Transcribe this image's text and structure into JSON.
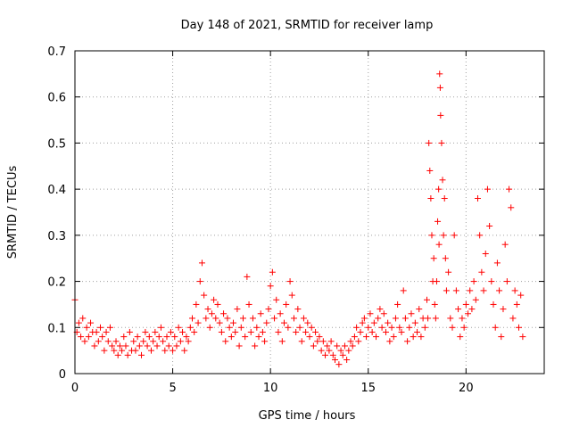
{
  "chart_data": {
    "type": "scatter",
    "title": "Day 148 of 2021, SRMTID for receiver lamp",
    "xlabel": "GPS time / hours",
    "ylabel": "SRMTID / TECUs",
    "xlim": [
      0,
      24
    ],
    "ylim": [
      0,
      0.7
    ],
    "xticks": [
      0,
      5,
      10,
      15,
      20
    ],
    "yticks": [
      0,
      0.1,
      0.2,
      0.3,
      0.4,
      0.5,
      0.6,
      0.7
    ],
    "xtick_labels": [
      "0",
      "5",
      "10",
      "15",
      "20"
    ],
    "ytick_labels": [
      "0",
      "0.1",
      "0.2",
      "0.3",
      "0.4",
      "0.5",
      "0.6",
      "0.7"
    ],
    "grid": true,
    "marker": "+",
    "color": "#ff0000",
    "series": [
      {
        "name": "SRMTID",
        "x": [
          0.0,
          0.1,
          0.2,
          0.3,
          0.4,
          0.5,
          0.6,
          0.7,
          0.8,
          0.9,
          1.0,
          1.1,
          1.2,
          1.3,
          1.4,
          1.5,
          1.6,
          1.7,
          1.8,
          1.9,
          2.0,
          2.1,
          2.2,
          2.3,
          2.4,
          2.5,
          2.6,
          2.7,
          2.8,
          2.9,
          3.0,
          3.1,
          3.2,
          3.3,
          3.4,
          3.5,
          3.6,
          3.7,
          3.8,
          3.9,
          4.0,
          4.1,
          4.2,
          4.3,
          4.4,
          4.5,
          4.6,
          4.7,
          4.8,
          4.9,
          5.0,
          5.1,
          5.2,
          5.3,
          5.4,
          5.5,
          5.6,
          5.7,
          5.8,
          5.9,
          6.0,
          6.1,
          6.2,
          6.3,
          6.4,
          6.5,
          6.6,
          6.7,
          6.8,
          6.9,
          7.0,
          7.1,
          7.2,
          7.3,
          7.4,
          7.5,
          7.6,
          7.7,
          7.8,
          7.9,
          8.0,
          8.1,
          8.2,
          8.3,
          8.4,
          8.5,
          8.6,
          8.7,
          8.8,
          8.9,
          9.0,
          9.1,
          9.2,
          9.3,
          9.4,
          9.5,
          9.6,
          9.7,
          9.8,
          9.9,
          10.0,
          10.1,
          10.2,
          10.3,
          10.4,
          10.5,
          10.6,
          10.7,
          10.8,
          10.9,
          11.0,
          11.1,
          11.2,
          11.3,
          11.4,
          11.5,
          11.6,
          11.7,
          11.8,
          11.9,
          12.0,
          12.1,
          12.2,
          12.3,
          12.4,
          12.5,
          12.6,
          12.7,
          12.8,
          12.9,
          13.0,
          13.1,
          13.2,
          13.3,
          13.4,
          13.5,
          13.6,
          13.7,
          13.8,
          13.9,
          14.0,
          14.1,
          14.2,
          14.3,
          14.4,
          14.5,
          14.6,
          14.7,
          14.8,
          14.9,
          15.0,
          15.1,
          15.2,
          15.3,
          15.4,
          15.5,
          15.6,
          15.7,
          15.8,
          15.9,
          16.0,
          16.1,
          16.2,
          16.3,
          16.4,
          16.5,
          16.6,
          16.7,
          16.8,
          16.9,
          17.0,
          17.1,
          17.2,
          17.3,
          17.4,
          17.5,
          17.6,
          17.7,
          17.8,
          17.9,
          18.0,
          18.05,
          18.1,
          18.15,
          18.2,
          18.25,
          18.3,
          18.35,
          18.4,
          18.45,
          18.5,
          18.55,
          18.6,
          18.62,
          18.65,
          18.68,
          18.7,
          18.75,
          18.8,
          18.85,
          18.9,
          18.95,
          19.0,
          19.1,
          19.2,
          19.3,
          19.4,
          19.5,
          19.6,
          19.7,
          19.8,
          19.9,
          20.0,
          20.1,
          20.2,
          20.3,
          20.4,
          20.5,
          20.6,
          20.7,
          20.8,
          20.9,
          21.0,
          21.1,
          21.2,
          21.3,
          21.4,
          21.5,
          21.6,
          21.7,
          21.8,
          21.9,
          22.0,
          22.1,
          22.2,
          22.3,
          22.4,
          22.5,
          22.6,
          22.7,
          22.8,
          22.9
        ],
        "y": [
          0.16,
          0.09,
          0.11,
          0.08,
          0.12,
          0.07,
          0.1,
          0.08,
          0.11,
          0.09,
          0.06,
          0.09,
          0.07,
          0.1,
          0.08,
          0.05,
          0.09,
          0.07,
          0.1,
          0.06,
          0.05,
          0.07,
          0.04,
          0.06,
          0.05,
          0.08,
          0.06,
          0.04,
          0.09,
          0.05,
          0.07,
          0.05,
          0.08,
          0.06,
          0.04,
          0.07,
          0.09,
          0.06,
          0.08,
          0.05,
          0.07,
          0.09,
          0.06,
          0.08,
          0.1,
          0.07,
          0.05,
          0.08,
          0.06,
          0.09,
          0.05,
          0.08,
          0.06,
          0.1,
          0.07,
          0.09,
          0.05,
          0.08,
          0.07,
          0.1,
          0.12,
          0.09,
          0.15,
          0.11,
          0.2,
          0.24,
          0.17,
          0.12,
          0.14,
          0.1,
          0.13,
          0.16,
          0.12,
          0.15,
          0.11,
          0.09,
          0.13,
          0.07,
          0.12,
          0.1,
          0.08,
          0.11,
          0.09,
          0.14,
          0.06,
          0.1,
          0.12,
          0.08,
          0.21,
          0.15,
          0.09,
          0.12,
          0.06,
          0.1,
          0.08,
          0.13,
          0.09,
          0.07,
          0.11,
          0.14,
          0.19,
          0.22,
          0.12,
          0.16,
          0.09,
          0.13,
          0.07,
          0.11,
          0.15,
          0.1,
          0.2,
          0.17,
          0.12,
          0.09,
          0.14,
          0.1,
          0.07,
          0.12,
          0.09,
          0.11,
          0.08,
          0.1,
          0.06,
          0.09,
          0.07,
          0.08,
          0.05,
          0.07,
          0.04,
          0.06,
          0.05,
          0.07,
          0.04,
          0.03,
          0.06,
          0.02,
          0.05,
          0.04,
          0.06,
          0.03,
          0.05,
          0.07,
          0.06,
          0.08,
          0.1,
          0.07,
          0.09,
          0.11,
          0.12,
          0.08,
          0.1,
          0.13,
          0.09,
          0.11,
          0.08,
          0.12,
          0.14,
          0.1,
          0.13,
          0.09,
          0.11,
          0.07,
          0.1,
          0.08,
          0.12,
          0.15,
          0.1,
          0.09,
          0.18,
          0.12,
          0.07,
          0.1,
          0.13,
          0.08,
          0.11,
          0.09,
          0.14,
          0.08,
          0.12,
          0.1,
          0.16,
          0.12,
          0.5,
          0.44,
          0.38,
          0.3,
          0.2,
          0.25,
          0.15,
          0.12,
          0.2,
          0.33,
          0.4,
          0.28,
          0.65,
          0.62,
          0.56,
          0.5,
          0.42,
          0.3,
          0.38,
          0.25,
          0.18,
          0.22,
          0.12,
          0.1,
          0.3,
          0.18,
          0.14,
          0.08,
          0.12,
          0.1,
          0.15,
          0.13,
          0.18,
          0.14,
          0.2,
          0.16,
          0.38,
          0.3,
          0.22,
          0.18,
          0.26,
          0.4,
          0.32,
          0.2,
          0.15,
          0.1,
          0.24,
          0.18,
          0.08,
          0.14,
          0.28,
          0.2,
          0.4,
          0.36,
          0.12,
          0.18,
          0.15,
          0.1,
          0.17,
          0.08
        ]
      }
    ]
  }
}
